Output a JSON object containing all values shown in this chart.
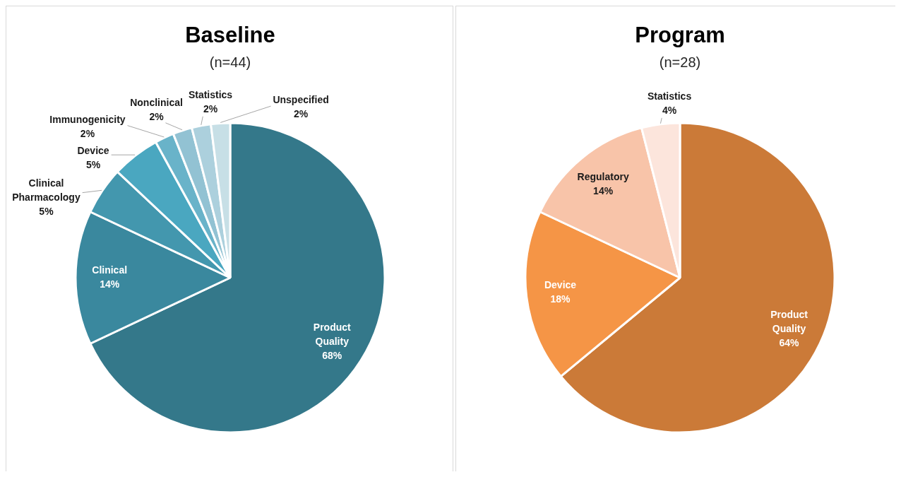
{
  "chart_data": [
    {
      "type": "pie",
      "title": "Baseline",
      "subtitle": "(n=44)",
      "categories": [
        "Product Quality",
        "Clinical",
        "Clinical Pharmacology",
        "Device",
        "Immunogenicity",
        "Nonclinical",
        "Statistics",
        "Unspecified"
      ],
      "values": [
        68,
        14,
        5,
        5,
        2,
        2,
        2,
        2
      ],
      "value_labels": [
        "68%",
        "14%",
        "5%",
        "5%",
        "2%",
        "2%",
        "2%",
        "2%"
      ],
      "colors": [
        "#34788a",
        "#3a889e",
        "#4397ae",
        "#4aa7c0",
        "#69b3c9",
        "#92c2d3",
        "#acd0dd",
        "#c7dfe6"
      ]
    },
    {
      "type": "pie",
      "title": "Program",
      "subtitle": "(n=28)",
      "categories": [
        "Product Quality",
        "Device",
        "Regulatory",
        "Statistics"
      ],
      "values": [
        64,
        18,
        14,
        4
      ],
      "value_labels": [
        "64%",
        "18%",
        "14%",
        "4%"
      ],
      "colors": [
        "#cb7a38",
        "#f59546",
        "#f8c4a9",
        "#fce5dc"
      ]
    }
  ]
}
